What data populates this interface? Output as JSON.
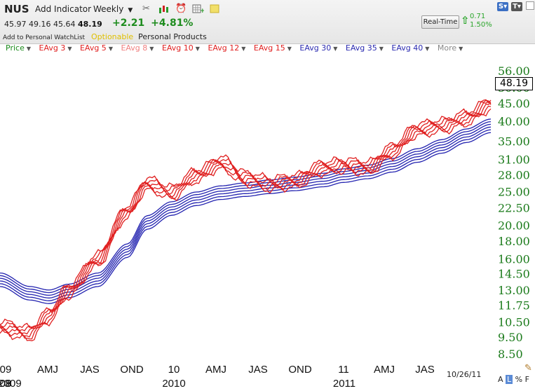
{
  "toolbar": {
    "symbol": "NUS",
    "add_indicator": "Add Indicator",
    "period": "Weekly",
    "icons": [
      "tools-icon",
      "candlestick-icon",
      "alarm-clock-icon",
      "grid-plus-icon",
      "sticky-note-icon"
    ],
    "right_buttons": [
      "S▾",
      "T▾"
    ]
  },
  "quote": {
    "open": "45.97",
    "high": "49.16",
    "low": "45.64",
    "last": "48.19",
    "change": "+2.21",
    "change_pct": "+4.81%"
  },
  "links": {
    "watchlist": "Add to Personal WatchList",
    "optionable": "Optionable",
    "industry": "Personal Products"
  },
  "realtime": {
    "label": "Real-Time",
    "change": "0.71",
    "change_pct": "1.50%"
  },
  "legend": [
    {
      "label": "Price",
      "color": "#1a8a1a"
    },
    {
      "label": "EAvg 3",
      "color": "#e02020"
    },
    {
      "label": "EAvg 5",
      "color": "#e02020"
    },
    {
      "label": "EAvg 8",
      "color": "#f08080"
    },
    {
      "label": "EAvg 10",
      "color": "#e02020"
    },
    {
      "label": "EAvg 12",
      "color": "#e02020"
    },
    {
      "label": "EAvg 15",
      "color": "#e02020"
    },
    {
      "label": "EAvg 30",
      "color": "#2a2ab0"
    },
    {
      "label": "EAvg 35",
      "color": "#2a2ab0"
    },
    {
      "label": "EAvg 40",
      "color": "#2a2ab0"
    },
    {
      "label": "More",
      "color": "#888888"
    }
  ],
  "chart_data": {
    "type": "line",
    "y_scale": "log",
    "ylim": [
      8.0,
      60.0
    ],
    "y_ticks": [
      "56.00",
      "50.00",
      "45.00",
      "40.00",
      "35.00",
      "31.00",
      "28.00",
      "25.00",
      "22.50",
      "20.00",
      "18.00",
      "16.00",
      "14.50",
      "13.00",
      "11.75",
      "10.50",
      "9.50",
      "8.50"
    ],
    "current_price": "48.19",
    "x_month_labels": [
      "09",
      "AMJ",
      "JAS",
      "OND",
      "10",
      "AMJ",
      "JAS",
      "OND",
      "11",
      "AMJ",
      "JAS"
    ],
    "x_year_labels": [
      "09",
      "2010",
      "2011"
    ],
    "x_clipped_labels": [
      "08",
      "2009"
    ],
    "t": [
      0,
      6,
      10,
      14,
      20,
      26,
      30,
      35,
      40,
      45,
      50,
      55,
      60,
      66,
      70,
      75,
      80,
      85,
      90,
      95,
      100
    ],
    "short_avg_values": [
      10.2,
      9.8,
      11.0,
      13.0,
      16.0,
      22.0,
      26.5,
      25.0,
      28.0,
      30.5,
      27.5,
      26.5,
      27.0,
      29.5,
      30.0,
      29.5,
      33.0,
      38.0,
      39.0,
      41.0,
      45.0
    ],
    "long_avg_values": [
      14.0,
      12.8,
      12.5,
      13.0,
      14.0,
      17.0,
      20.5,
      22.5,
      24.0,
      25.0,
      25.5,
      26.0,
      26.5,
      27.2,
      28.0,
      28.7,
      30.0,
      32.0,
      34.0,
      36.5,
      39.0
    ],
    "ribbon_count_short": 6,
    "ribbon_count_long": 6
  },
  "footer": {
    "date": "10/26/11",
    "scale_buttons": [
      "A",
      "L",
      "%",
      "F"
    ]
  }
}
